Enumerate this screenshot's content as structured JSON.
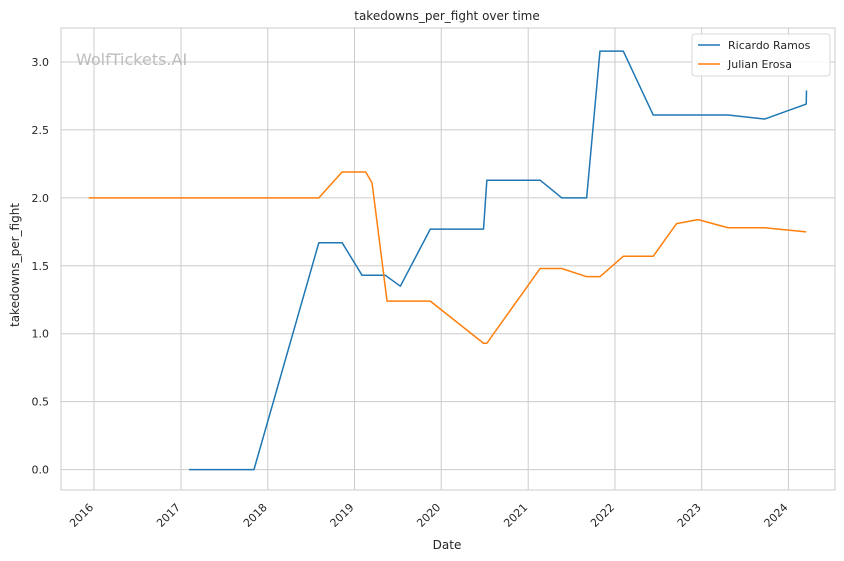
{
  "chart_data": {
    "type": "line",
    "title": "takedowns_per_fight over time",
    "xlabel": "Date",
    "ylabel": "takedowns_per_fight",
    "watermark": "WolfTickets.AI",
    "x_ticks": [
      "2016",
      "2017",
      "2018",
      "2019",
      "2020",
      "2021",
      "2022",
      "2023",
      "2024"
    ],
    "y_ticks": [
      "0.0",
      "0.5",
      "1.0",
      "1.5",
      "2.0",
      "2.5",
      "3.0"
    ],
    "xlim": [
      "2015-08-15",
      "2024-07-15"
    ],
    "ylim": [
      -0.15,
      3.25
    ],
    "grid": true,
    "legend_position": "top-right",
    "series": [
      {
        "name": "Ricardo Ramos",
        "color": "#1f77b4",
        "points": [
          [
            "2017-02-04",
            0.0
          ],
          [
            "2017-11-04",
            0.0
          ],
          [
            "2018-08-04",
            1.67
          ],
          [
            "2018-11-10",
            1.67
          ],
          [
            "2019-02-02",
            1.43
          ],
          [
            "2019-05-11",
            1.43
          ],
          [
            "2019-07-13",
            1.35
          ],
          [
            "2019-11-16",
            1.77
          ],
          [
            "2020-06-27",
            1.77
          ],
          [
            "2020-07-11",
            2.13
          ],
          [
            "2021-02-20",
            2.13
          ],
          [
            "2021-05-22",
            2.0
          ],
          [
            "2021-09-04",
            2.0
          ],
          [
            "2021-10-30",
            3.08
          ],
          [
            "2022-02-05",
            3.08
          ],
          [
            "2022-06-11",
            2.61
          ],
          [
            "2023-04-22",
            2.61
          ],
          [
            "2023-09-23",
            2.58
          ],
          [
            "2024-03-16",
            2.69
          ],
          [
            "2024-03-17",
            2.79
          ]
        ]
      },
      {
        "name": "Julian Erosa",
        "color": "#ff7f0e",
        "points": [
          [
            "2015-12-10",
            2.0
          ],
          [
            "2018-08-04",
            2.0
          ],
          [
            "2018-11-10",
            2.19
          ],
          [
            "2019-02-17",
            2.19
          ],
          [
            "2019-03-16",
            2.11
          ],
          [
            "2019-05-18",
            1.24
          ],
          [
            "2019-11-16",
            1.24
          ],
          [
            "2020-06-27",
            0.93
          ],
          [
            "2020-07-11",
            0.93
          ],
          [
            "2021-02-20",
            1.48
          ],
          [
            "2021-05-22",
            1.48
          ],
          [
            "2021-09-04",
            1.42
          ],
          [
            "2021-10-30",
            1.42
          ],
          [
            "2022-02-05",
            1.57
          ],
          [
            "2022-06-11",
            1.57
          ],
          [
            "2022-09-17",
            1.81
          ],
          [
            "2022-12-17",
            1.84
          ],
          [
            "2023-04-22",
            1.78
          ],
          [
            "2023-09-23",
            1.78
          ],
          [
            "2024-03-16",
            1.75
          ]
        ]
      }
    ]
  }
}
